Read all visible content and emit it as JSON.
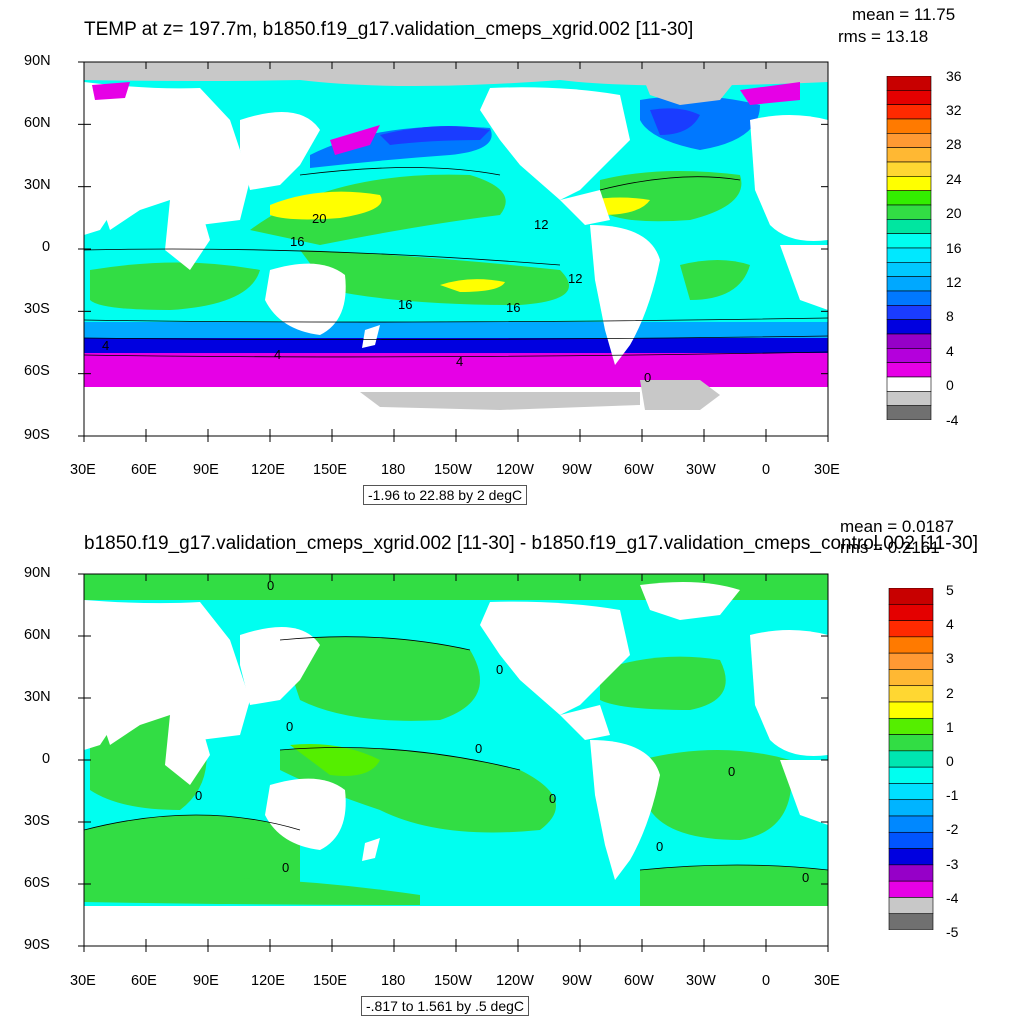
{
  "panels": [
    {
      "title": "TEMP at z= 197.7m, b1850.f19_g17.validation_cmeps_xgrid.002 [11-30]",
      "mean_text": "mean = 11.75",
      "rms_text": "rms = 13.18",
      "range_text": "-1.96 to 22.88 by 2 degC",
      "colorbar_labels": [
        "36",
        "32",
        "28",
        "24",
        "20",
        "16",
        "12",
        "8",
        "4",
        "0",
        "-4"
      ],
      "colorbar_colors": [
        "#c80000",
        "#e40000",
        "#ff2a00",
        "#ff7a00",
        "#ff9933",
        "#ffb833",
        "#ffd732",
        "#ffff00",
        "#33ee00",
        "#32dd44",
        "#00e6a0",
        "#00fff0",
        "#00e8ff",
        "#00c8ff",
        "#00a8ff",
        "#0078ff",
        "#1a3cff",
        "#0000e0",
        "#9600c8",
        "#b400dc",
        "#e600e6",
        "#ffffff",
        "#c8c8c8",
        "#707070"
      ],
      "contour_labels": [
        "20",
        "16",
        "12",
        "12",
        "16",
        "16",
        "4",
        "4",
        "4",
        "0"
      ]
    },
    {
      "title": "b1850.f19_g17.validation_cmeps_xgrid.002 [11-30] - b1850.f19_g17.validation_cmeps_control.002 [11-30]",
      "mean_text": "mean = 0.0187",
      "rms_text": "rms = 0.2161",
      "range_text": "-.817 to 1.561 by .5 degC",
      "colorbar_labels": [
        "5",
        "4",
        "3",
        "2",
        "1",
        "0",
        "-1",
        "-2",
        "-3",
        "-4",
        "-5"
      ],
      "colorbar_colors": [
        "#c80000",
        "#e40000",
        "#ff2a00",
        "#ff7a00",
        "#ff9933",
        "#ffb833",
        "#ffd732",
        "#ffff00",
        "#55ee00",
        "#32dd44",
        "#00e6b0",
        "#00fff0",
        "#00e0ff",
        "#00b4ff",
        "#0088ff",
        "#0055ff",
        "#0000e0",
        "#9600c8",
        "#e600e6",
        "#c8c8c8",
        "#707070"
      ],
      "contour_labels": [
        "0",
        "0",
        "0",
        "0",
        "0",
        "0",
        "0",
        "0",
        "0",
        "0"
      ]
    }
  ],
  "lat_labels": [
    "90N",
    "60N",
    "30N",
    "0",
    "30S",
    "60S",
    "90S"
  ],
  "lon_labels": [
    "30E",
    "60E",
    "90E",
    "120E",
    "150E",
    "180",
    "150W",
    "120W",
    "90W",
    "60W",
    "30W",
    "0",
    "30E"
  ],
  "colors": {
    "land": "#ffffff",
    "sea_ice_gray": "#c8c8c8",
    "warm_green": "#32dd44",
    "cyan": "#00fff0",
    "light_green": "#55ee00",
    "yellow": "#ffff00",
    "blue": "#0000e0",
    "magenta": "#e600e6"
  }
}
